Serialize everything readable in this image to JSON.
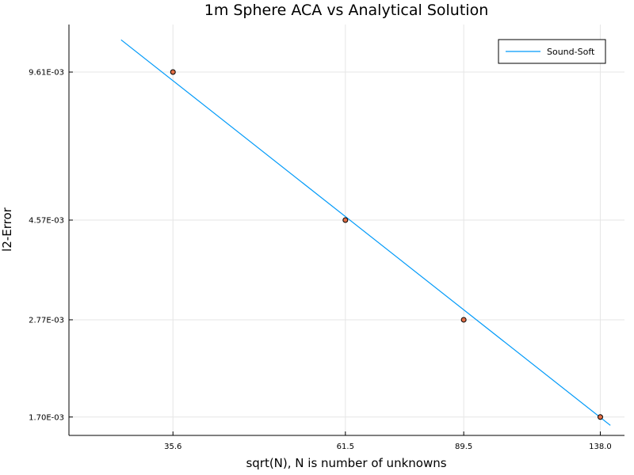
{
  "chart_data": {
    "type": "scatter",
    "title": "1m Sphere ACA vs Analytical Solution",
    "xlabel": "sqrt(N), N is number of unknowns",
    "ylabel": "l2-Error",
    "x_scale": "log",
    "y_scale": "log",
    "xlim": [
      25.6,
      149.0
    ],
    "ylim": [
      0.00155,
      0.0122
    ],
    "x_ticks": [
      35.6,
      61.5,
      89.5,
      138.0
    ],
    "x_tick_labels": [
      "35.6",
      "61.5",
      "89.5",
      "138.0"
    ],
    "y_ticks": [
      0.0017,
      0.00277,
      0.00457,
      0.00961
    ],
    "y_tick_labels": [
      "1.70E-03",
      "2.77E-03",
      "4.57E-03",
      "9.61E-03"
    ],
    "grid": true,
    "legend_position": "top-right",
    "series": [
      {
        "name": "Sound-Soft",
        "kind": "line",
        "color": "#009af9",
        "x": [
          30.2,
          142.5
        ],
        "y": [
          0.0113,
          0.00163
        ]
      },
      {
        "kind": "scatter",
        "color": "#e26f46",
        "x": [
          35.6,
          61.5,
          89.5,
          138.0
        ],
        "y": [
          0.00961,
          0.00457,
          0.00277,
          0.0017
        ]
      }
    ]
  }
}
